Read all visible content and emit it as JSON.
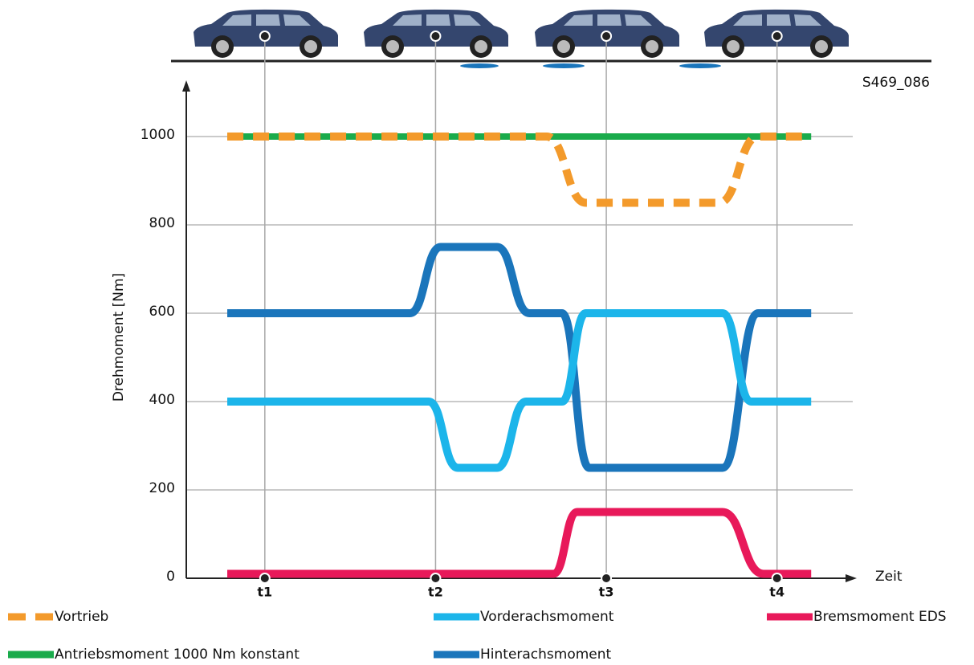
{
  "chart_data": {
    "type": "line",
    "code": "S469_086",
    "y_label": "Drehmoment [Nm]",
    "x_label": "Zeit",
    "xlim": [
      0.54,
      4.42
    ],
    "xticks": [
      {
        "value": 1,
        "label": "t1"
      },
      {
        "value": 2,
        "label": "t2"
      },
      {
        "value": 3,
        "label": "t3"
      },
      {
        "value": 4,
        "label": "t4"
      }
    ],
    "ylim": [
      0,
      1120
    ],
    "yticks": [
      0,
      200,
      400,
      600,
      800,
      1000
    ],
    "grid": true,
    "series": [
      {
        "name": "Antriebsmoment 1000 Nm konstant",
        "color": "#1aab4b",
        "x": [
          0.78,
          4.2
        ],
        "values": [
          1000,
          1000
        ]
      },
      {
        "name": "Vortrieb",
        "color": "#f39a2b",
        "dashed": true,
        "x": [
          0.78,
          2.65,
          2.88,
          3.66,
          3.89,
          4.2
        ],
        "values": [
          1000,
          1000,
          850,
          850,
          1000,
          1000
        ]
      },
      {
        "name": "Hinterachsmoment",
        "color": "#1a75bb",
        "x": [
          0.78,
          1.85,
          2.03,
          2.36,
          2.55,
          2.74,
          2.9,
          3.68,
          3.89,
          4.2
        ],
        "values": [
          600,
          600,
          750,
          750,
          600,
          600,
          250,
          250,
          600,
          600
        ]
      },
      {
        "name": "Vorderachsmoment",
        "color": "#1cb5ea",
        "x": [
          0.78,
          1.96,
          2.13,
          2.36,
          2.53,
          2.74,
          2.88,
          3.68,
          3.85,
          4.2
        ],
        "values": [
          400,
          400,
          250,
          250,
          400,
          400,
          600,
          600,
          400,
          400
        ]
      },
      {
        "name": "Bremsmoment EDS",
        "color": "#e8195a",
        "x": [
          0.78,
          2.69,
          2.83,
          3.68,
          3.92,
          4.2
        ],
        "values": [
          10,
          10,
          150,
          150,
          10,
          10
        ]
      }
    ]
  }
}
